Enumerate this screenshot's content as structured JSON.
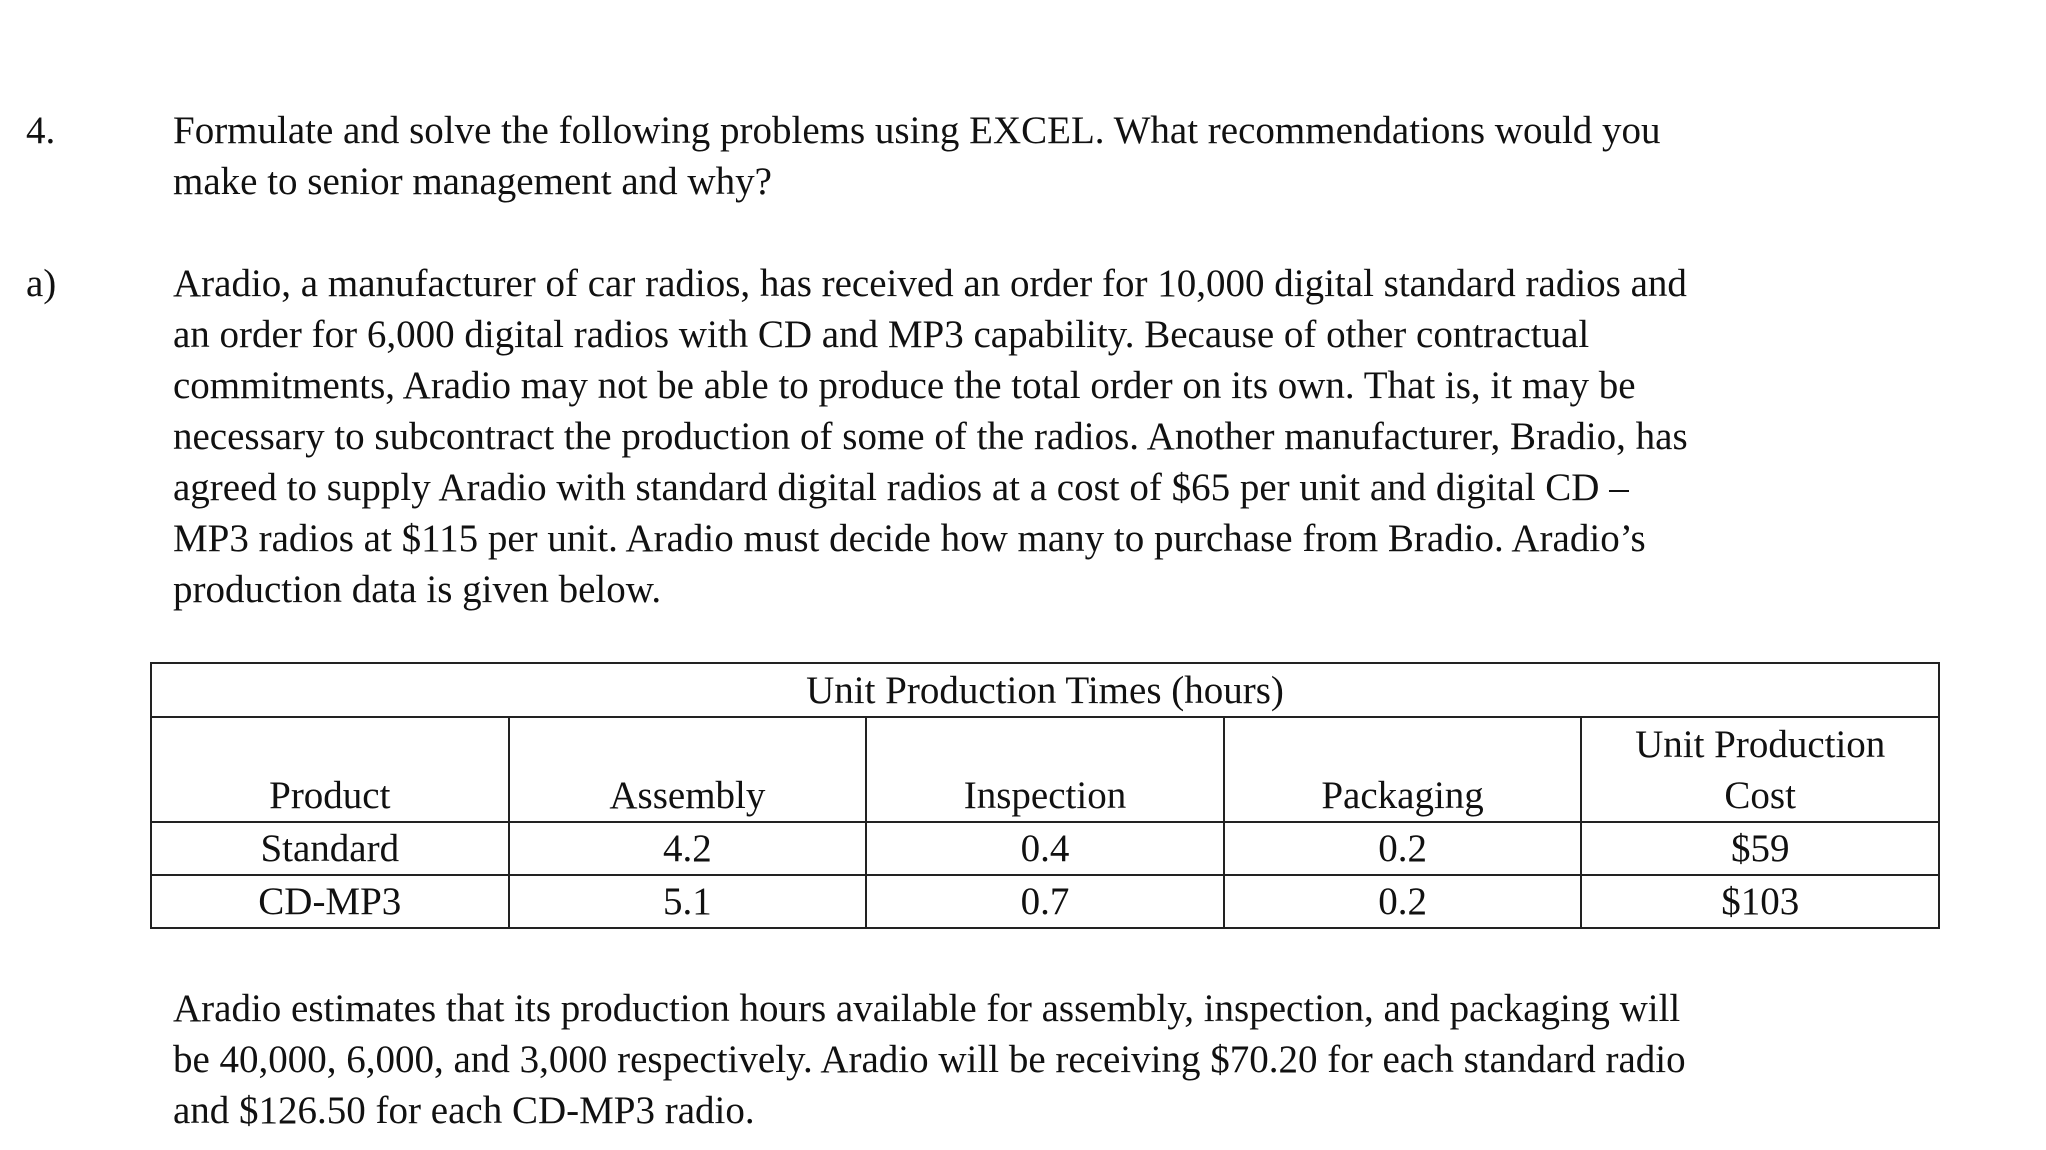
{
  "question": {
    "number": "4.",
    "lines": [
      "Formulate and solve the following problems using EXCEL.  What recommendations would you",
      "make to senior management and why?"
    ]
  },
  "part_a": {
    "label": "a)",
    "lines": [
      "Aradio, a manufacturer of car radios, has received an order for 10,000 digital standard radios and",
      "an order for 6,000 digital radios with CD and MP3 capability. Because of other contractual",
      "commitments, Aradio may not be able to produce the total order on its own. That is, it may be",
      "necessary to subcontract the production of some of the radios.  Another manufacturer, Bradio, has",
      "agreed to supply Aradio with standard digital radios at a cost of $65 per unit and digital CD –",
      "MP3 radios at $115 per unit. Aradio must decide how many to purchase from Bradio. Aradio’s",
      "production data is given below."
    ]
  },
  "table": {
    "caption": "Unit Production Times (hours)",
    "headers": [
      "Product",
      "Assembly",
      "Inspection",
      "Packaging",
      "Unit Production\nCost"
    ],
    "header_last_line1": "Unit Production",
    "header_last_line2": "Cost",
    "rows": [
      [
        "Standard",
        "4.2",
        "0.4",
        "0.2",
        "$59"
      ],
      [
        "CD-MP3",
        "5.1",
        "0.7",
        "0.2",
        "$103"
      ]
    ]
  },
  "closing": {
    "lines": [
      "Aradio estimates that its production hours available for assembly, inspection, and packaging will",
      "be 40,000, 6,000, and 3,000 respectively. Aradio will be receiving $70.20 for each standard radio",
      "and $126.50 for each CD-MP3 radio."
    ]
  }
}
